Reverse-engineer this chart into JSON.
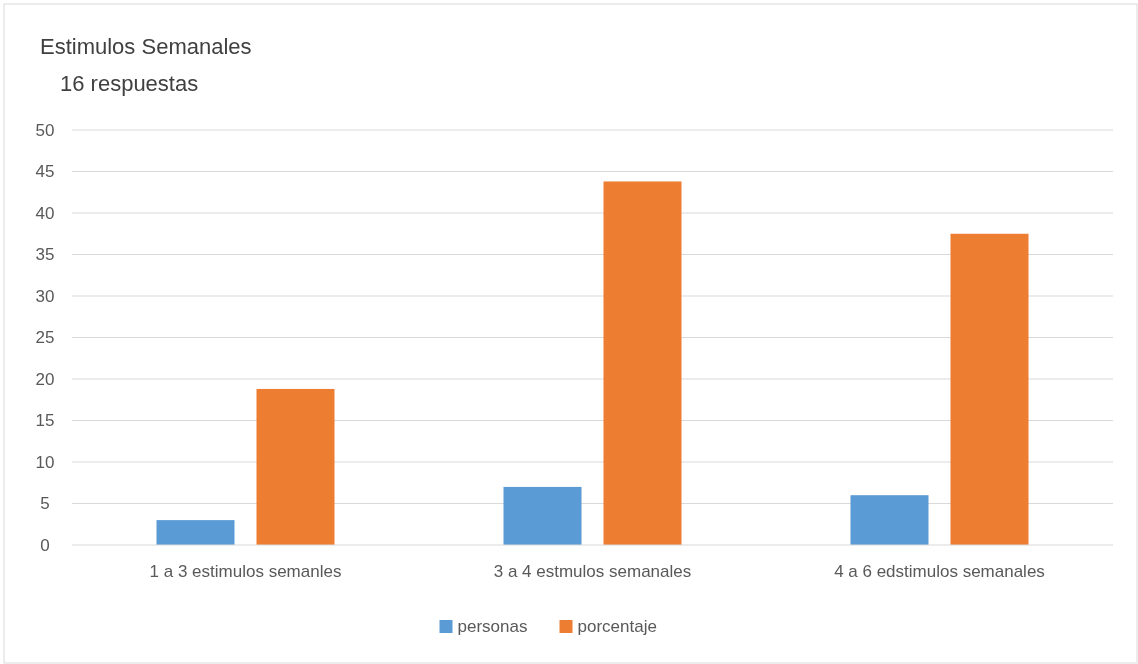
{
  "chart_data": {
    "type": "bar",
    "title": "Estimulos Semanales",
    "subtitle": "16 respuestas",
    "categories": [
      "1 a 3 estimulos semanles",
      "3 a 4 estmulos semanales",
      "4 a 6 edstimulos semanales"
    ],
    "series": [
      {
        "name": "personas",
        "color": "#5b9bd5",
        "values": [
          3,
          7,
          6
        ]
      },
      {
        "name": "porcentaje",
        "color": "#ed7d31",
        "values": [
          18.8,
          43.8,
          37.5
        ]
      }
    ],
    "ylim": [
      0,
      50
    ],
    "yticks": [
      0,
      5,
      10,
      15,
      20,
      25,
      30,
      35,
      40,
      45,
      50
    ],
    "grid": "y",
    "legend": "bottom"
  }
}
